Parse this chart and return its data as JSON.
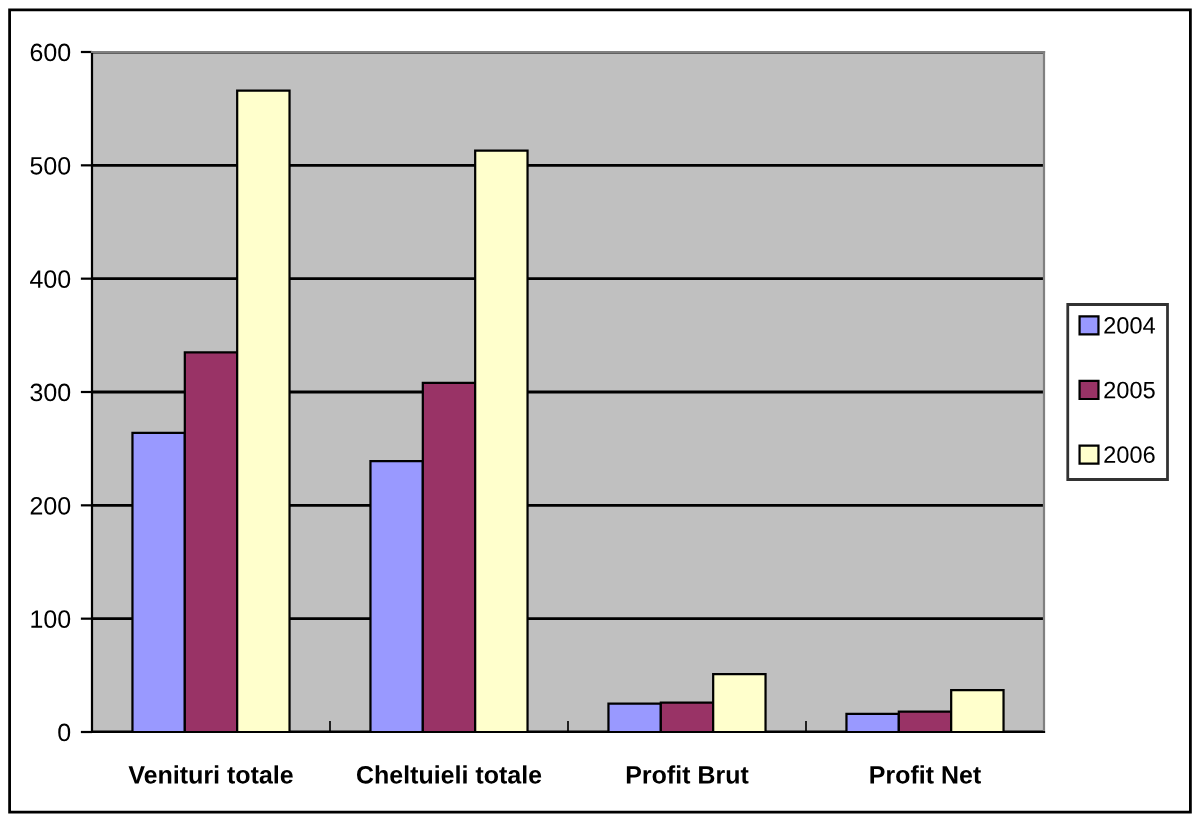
{
  "chart_data": {
    "type": "bar",
    "categories": [
      "Venituri totale",
      "Cheltuieli totale",
      "Profit Brut",
      "Profit Net"
    ],
    "series": [
      {
        "name": "2004",
        "color": "#9999ff",
        "values": [
          264,
          239,
          25,
          16
        ]
      },
      {
        "name": "2005",
        "color": "#993366",
        "values": [
          335,
          308,
          26,
          18
        ]
      },
      {
        "name": "2006",
        "color": "#ffffcc",
        "values": [
          566,
          513,
          51,
          37
        ]
      }
    ],
    "ylim": [
      0,
      600
    ],
    "yticks": [
      0,
      100,
      200,
      300,
      400,
      500,
      600
    ],
    "grid": "y",
    "legend": "right"
  }
}
